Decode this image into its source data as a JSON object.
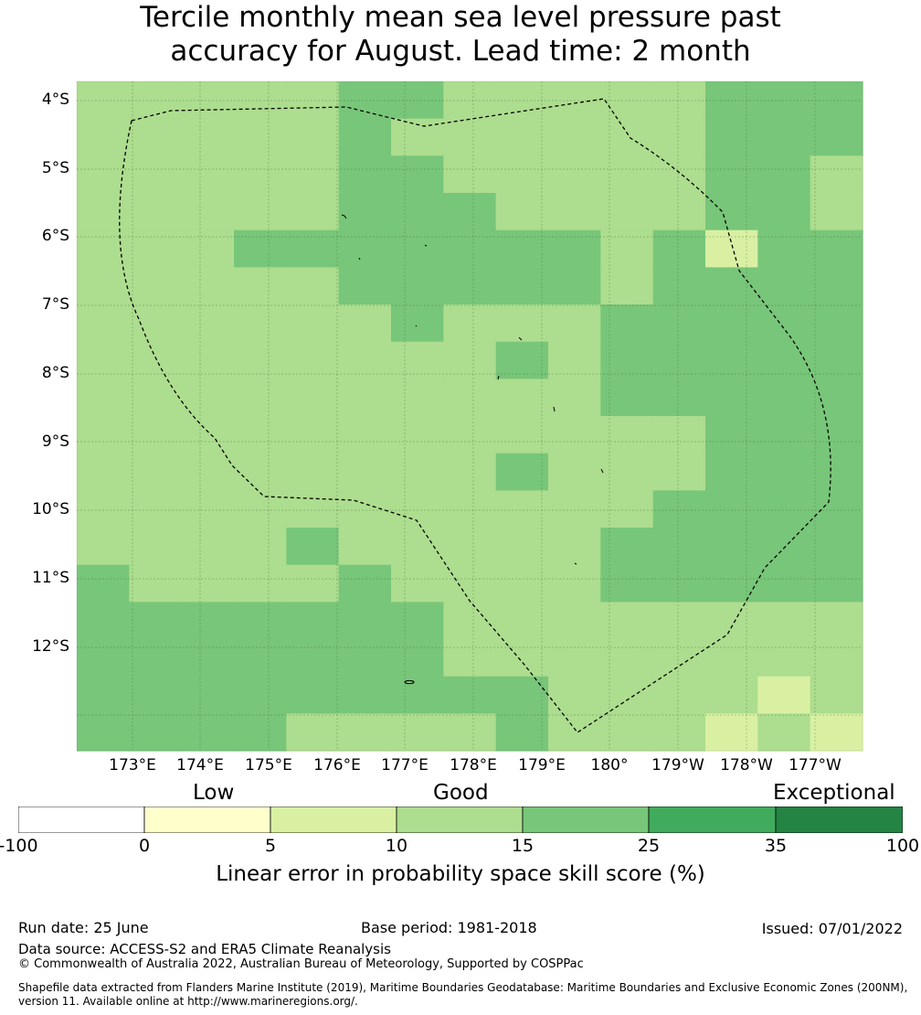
{
  "title_line1": "Tercile monthly mean sea level pressure past",
  "title_line2": "accuracy for August. Lead time: 2 month",
  "map": {
    "lat_labels": [
      "4°S",
      "5°S",
      "6°S",
      "7°S",
      "8°S",
      "9°S",
      "10°S",
      "11°S",
      "12°S"
    ],
    "lon_labels": [
      "173°E",
      "174°E",
      "175°E",
      "176°E",
      "177°E",
      "178°E",
      "179°E",
      "180°",
      "179°W",
      "178°W",
      "177°W"
    ],
    "colors": [
      "#d9f0a3",
      "#addd8e",
      "#78c679"
    ],
    "grid_rows": [
      [
        1,
        1,
        1,
        1,
        1,
        2,
        2,
        1,
        1,
        1,
        1,
        1,
        2,
        2,
        2
      ],
      [
        1,
        1,
        1,
        1,
        1,
        2,
        1,
        1,
        1,
        1,
        1,
        1,
        2,
        2,
        2
      ],
      [
        1,
        1,
        1,
        1,
        1,
        2,
        2,
        1,
        1,
        1,
        1,
        1,
        2,
        2,
        1
      ],
      [
        1,
        1,
        1,
        1,
        1,
        2,
        2,
        2,
        1,
        1,
        1,
        1,
        2,
        2,
        1
      ],
      [
        1,
        1,
        1,
        2,
        2,
        2,
        2,
        2,
        2,
        2,
        1,
        2,
        0,
        2,
        2
      ],
      [
        1,
        1,
        1,
        1,
        1,
        2,
        2,
        2,
        2,
        2,
        1,
        2,
        2,
        2,
        2
      ],
      [
        1,
        1,
        1,
        1,
        1,
        1,
        2,
        1,
        1,
        1,
        2,
        2,
        2,
        2,
        2
      ],
      [
        1,
        1,
        1,
        1,
        1,
        1,
        1,
        1,
        2,
        1,
        2,
        2,
        2,
        2,
        2
      ],
      [
        1,
        1,
        1,
        1,
        1,
        1,
        1,
        1,
        1,
        1,
        2,
        2,
        2,
        2,
        2
      ],
      [
        1,
        1,
        1,
        1,
        1,
        1,
        1,
        1,
        1,
        1,
        1,
        1,
        2,
        2,
        2
      ],
      [
        1,
        1,
        1,
        1,
        1,
        1,
        1,
        1,
        2,
        1,
        1,
        1,
        2,
        2,
        2
      ],
      [
        1,
        1,
        1,
        1,
        1,
        1,
        1,
        1,
        1,
        1,
        1,
        2,
        2,
        2,
        2
      ],
      [
        1,
        1,
        1,
        1,
        2,
        1,
        1,
        1,
        1,
        1,
        2,
        2,
        2,
        2,
        2
      ],
      [
        2,
        1,
        1,
        1,
        1,
        2,
        1,
        1,
        1,
        1,
        2,
        2,
        2,
        2,
        2
      ],
      [
        2,
        2,
        2,
        2,
        2,
        2,
        2,
        1,
        1,
        1,
        1,
        1,
        1,
        1,
        1
      ],
      [
        2,
        2,
        2,
        2,
        2,
        2,
        2,
        1,
        1,
        1,
        1,
        1,
        1,
        1,
        1
      ],
      [
        2,
        2,
        2,
        2,
        2,
        2,
        2,
        2,
        2,
        1,
        1,
        1,
        1,
        0,
        1
      ],
      [
        2,
        2,
        2,
        2,
        1,
        1,
        1,
        1,
        2,
        1,
        1,
        1,
        0,
        1,
        0
      ]
    ]
  },
  "colorbar": {
    "categories": [
      "Low",
      "Good",
      "Exceptional"
    ],
    "ticks": [
      "-100",
      "0",
      "5",
      "10",
      "15",
      "25",
      "35",
      "100"
    ],
    "colors": [
      "#ffffff",
      "#ffffcc",
      "#d9f0a3",
      "#addd8e",
      "#78c679",
      "#41ab5d",
      "#238443"
    ],
    "label": "Linear error in probability space skill score (%)"
  },
  "footer": {
    "run_date": "Run date: 25 June",
    "base_period": "Base period: 1981-2018",
    "issued": "Issued: 07/01/2022",
    "data_source": "Data source: ACCESS-S2 and ERA5 Climate Reanalysis",
    "copyright": "© Commonwealth of Australia 2022, Australian Bureau of Meteorology, Supported by COSPPac",
    "shapefile_line1": "Shapefile data extracted from Flanders Marine Institute (2019), Maritime Boundaries Geodatabase: Maritime Boundaries and Exclusive Economic Zones (200NM),",
    "shapefile_line2": "version 11. Available online at http://www.marineregions.org/."
  }
}
